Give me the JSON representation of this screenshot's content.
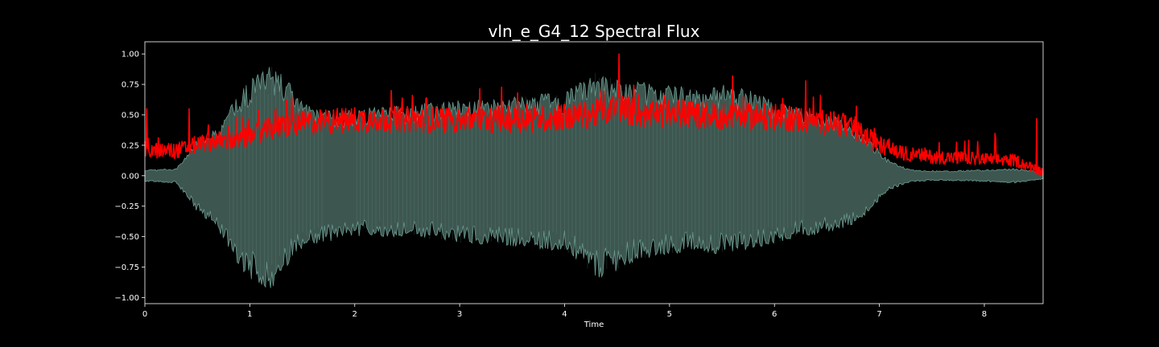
{
  "chart_data": {
    "type": "line",
    "title": "vln_e_G4_12 Spectral Flux",
    "xlabel": "Time",
    "ylabel": "",
    "xlim": [
      0,
      8.56
    ],
    "ylim": [
      -1.05,
      1.1
    ],
    "grid": false,
    "legend": "none",
    "colors": {
      "background": "#000000",
      "axes_edge": "#ffffff",
      "text": "#ffffff",
      "waveform_fill": "#3d5750",
      "waveform_edge": "#6a9a8f",
      "flux_line": "#ff0000"
    },
    "x_ticks": [
      0,
      1,
      2,
      3,
      4,
      5,
      6,
      7,
      8
    ],
    "x_tick_labels": [
      "0",
      "1",
      "2",
      "3",
      "4",
      "5",
      "6",
      "7",
      "8"
    ],
    "y_ticks": [
      1.0,
      0.75,
      0.5,
      0.25,
      0.0,
      -0.25,
      -0.5,
      -0.75,
      -1.0
    ],
    "y_tick_labels": [
      "1.00",
      "0.75",
      "0.50",
      "0.25",
      "0.00",
      "−0.25",
      "−0.50",
      "−0.75",
      "−1.00"
    ],
    "series": [
      {
        "name": "",
        "kind": "waveform",
        "x": [
          0,
          0.3,
          0.5,
          0.7,
          0.8,
          0.9,
          1.0,
          1.1,
          1.2,
          1.3,
          1.4,
          1.5,
          1.7,
          2.0,
          2.5,
          3.0,
          3.5,
          4.0,
          4.2,
          4.3,
          4.5,
          4.7,
          5.0,
          5.3,
          5.5,
          5.8,
          6.0,
          6.3,
          6.6,
          6.8,
          6.9,
          7.0,
          7.1,
          7.3,
          7.6,
          8.0,
          8.3,
          8.56
        ],
        "max": [
          0.05,
          0.06,
          0.3,
          0.4,
          0.55,
          0.7,
          0.8,
          0.85,
          0.9,
          0.87,
          0.75,
          0.6,
          0.55,
          0.55,
          0.58,
          0.62,
          0.65,
          0.7,
          0.82,
          0.85,
          0.8,
          0.78,
          0.75,
          0.72,
          0.75,
          0.7,
          0.62,
          0.55,
          0.48,
          0.4,
          0.3,
          0.22,
          0.12,
          0.05,
          0.04,
          0.05,
          0.06,
          0.03
        ],
        "min": [
          -0.05,
          -0.06,
          -0.3,
          -0.45,
          -0.6,
          -0.75,
          -0.85,
          -0.9,
          -0.93,
          -0.85,
          -0.7,
          -0.62,
          -0.55,
          -0.5,
          -0.5,
          -0.55,
          -0.58,
          -0.62,
          -0.75,
          -0.85,
          -0.78,
          -0.7,
          -0.65,
          -0.62,
          -0.65,
          -0.6,
          -0.55,
          -0.5,
          -0.45,
          -0.38,
          -0.3,
          -0.2,
          -0.12,
          -0.05,
          -0.04,
          -0.05,
          -0.06,
          -0.03
        ]
      },
      {
        "name": "",
        "kind": "flux",
        "x": [
          0,
          0.3,
          0.5,
          0.7,
          0.9,
          1.0,
          1.2,
          1.5,
          2.0,
          2.5,
          3.0,
          3.5,
          4.0,
          4.3,
          4.5,
          4.8,
          5.0,
          5.5,
          6.0,
          6.3,
          6.6,
          6.8,
          6.9,
          7.0,
          7.2,
          7.5,
          7.8,
          8.0,
          8.3,
          8.56
        ],
        "values": [
          0.2,
          0.2,
          0.25,
          0.28,
          0.28,
          0.32,
          0.38,
          0.42,
          0.45,
          0.45,
          0.45,
          0.45,
          0.47,
          0.5,
          0.55,
          0.48,
          0.5,
          0.48,
          0.47,
          0.45,
          0.42,
          0.35,
          0.3,
          0.25,
          0.18,
          0.15,
          0.14,
          0.13,
          0.12,
          0.02
        ],
        "peaks": [
          {
            "x": 0.02,
            "y": 0.55
          },
          {
            "x": 0.42,
            "y": 0.55
          },
          {
            "x": 1.35,
            "y": 0.62
          },
          {
            "x": 2.35,
            "y": 0.7
          },
          {
            "x": 3.55,
            "y": 0.68
          },
          {
            "x": 4.52,
            "y": 1.0
          },
          {
            "x": 5.6,
            "y": 0.82
          },
          {
            "x": 6.3,
            "y": 0.72
          },
          {
            "x": 6.3,
            "y": 0.78
          },
          {
            "x": 8.5,
            "y": 0.47
          }
        ]
      }
    ]
  }
}
